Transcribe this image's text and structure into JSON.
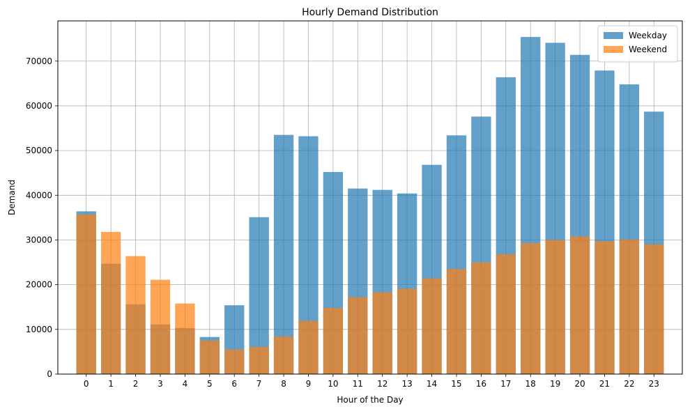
{
  "chart_data": {
    "type": "bar",
    "title": "Hourly Demand Distribution",
    "xlabel": "Hour of the Day",
    "ylabel": "Demand",
    "categories": [
      "0",
      "1",
      "2",
      "3",
      "4",
      "5",
      "6",
      "7",
      "8",
      "9",
      "10",
      "11",
      "12",
      "13",
      "14",
      "15",
      "16",
      "17",
      "18",
      "19",
      "20",
      "21",
      "22",
      "23"
    ],
    "series": [
      {
        "name": "Weekday",
        "color": "#1f77b4",
        "opacity": 0.7,
        "values": [
          36400,
          24700,
          15600,
          11100,
          10300,
          8300,
          15400,
          35100,
          53500,
          53200,
          45200,
          41500,
          41200,
          40400,
          46800,
          53400,
          57600,
          66400,
          75400,
          74100,
          71400,
          67900,
          64800,
          58700
        ]
      },
      {
        "name": "Weekend",
        "color": "#ff7f0e",
        "opacity": 0.7,
        "values": [
          35700,
          31800,
          26400,
          21100,
          15800,
          7500,
          5500,
          6100,
          8400,
          11900,
          14800,
          17200,
          18300,
          19100,
          21400,
          23500,
          25000,
          26800,
          29300,
          30000,
          30800,
          29700,
          30100,
          29000
        ]
      }
    ],
    "ylim": [
      0,
      79000
    ],
    "yticks": [
      0,
      10000,
      20000,
      30000,
      40000,
      50000,
      60000,
      70000
    ],
    "grid": true,
    "legend_position": "top-right"
  }
}
